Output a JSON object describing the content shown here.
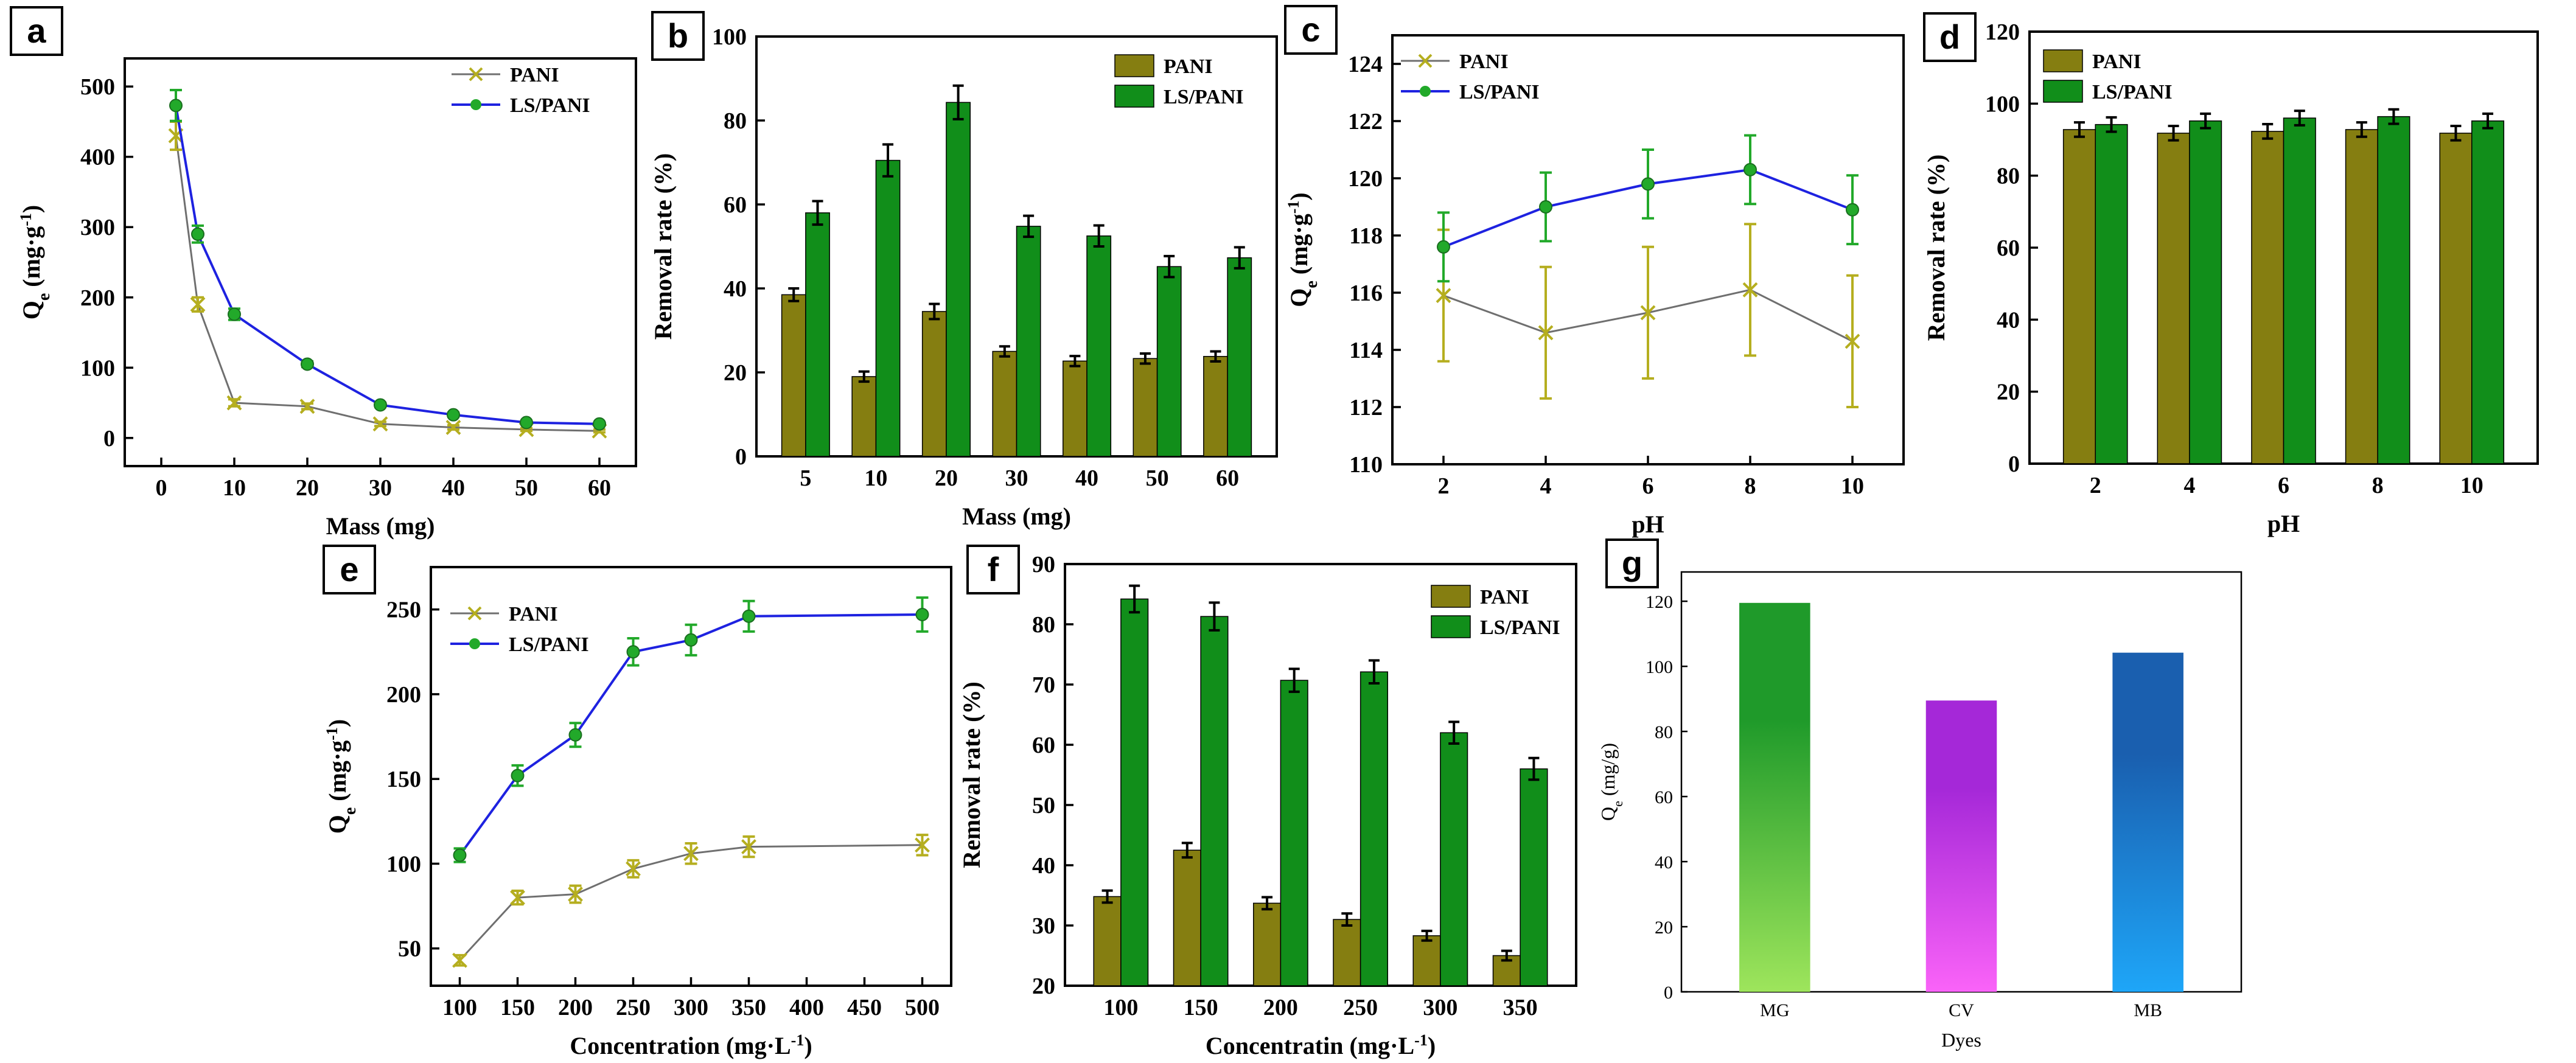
{
  "figure": {
    "panel_labels": [
      "a",
      "b",
      "c",
      "d",
      "e",
      "f",
      "g"
    ],
    "colors": {
      "pani_bar": "#857E11",
      "lspani_bar": "#118E1A",
      "pani_line": "#6f6f6f",
      "pani_marker": "#B5AE1F",
      "lspani_line": "#1E22E0",
      "lspani_marker": "#22A92A",
      "mg_top": "#1F9A2A",
      "mg_bottom": "#9EE55C",
      "cv_top": "#A528D8",
      "cv_bottom": "#FA63F8",
      "mb_top": "#1A5FAF",
      "mb_bottom": "#1EA6F8"
    }
  },
  "chart_data": [
    {
      "panel": "a",
      "type": "line",
      "xlabel": "Mass (mg)",
      "ylabel": "Qe (mg·g⁻¹)",
      "ylabel_main": "Q",
      "ylabel_sub": "e",
      "ylabel_unit": " (mg·g",
      "ylabel_sup": "-1",
      "ylabel_close": ")",
      "xlim": [
        -5,
        65
      ],
      "ylim": [
        -40,
        540
      ],
      "xticks": [
        0,
        10,
        20,
        30,
        40,
        50,
        60
      ],
      "yticks": [
        0,
        100,
        200,
        300,
        400,
        500
      ],
      "legend": "top-right",
      "series": [
        {
          "name": "PANI",
          "x": [
            2,
            5,
            10,
            20,
            30,
            40,
            50,
            60
          ],
          "y": [
            430,
            190,
            50,
            45,
            20,
            15,
            12,
            10
          ],
          "err": [
            20,
            10,
            5,
            4,
            3,
            3,
            2,
            2
          ]
        },
        {
          "name": "LS/PANI",
          "x": [
            2,
            5,
            10,
            20,
            30,
            40,
            50,
            60
          ],
          "y": [
            473,
            290,
            176,
            105,
            47,
            33,
            22,
            20
          ],
          "err": [
            22,
            12,
            8,
            4,
            3,
            3,
            2,
            2
          ]
        }
      ]
    },
    {
      "panel": "b",
      "type": "bar",
      "xlabel": "Mass (mg)",
      "ylabel": "Removal rate (%)",
      "categories": [
        "5",
        "10",
        "20",
        "30",
        "40",
        "50",
        "60"
      ],
      "ylim": [
        0,
        100
      ],
      "yticks": [
        0,
        20,
        40,
        60,
        80,
        100
      ],
      "legend": "top-right",
      "series": [
        {
          "name": "PANI",
          "values": [
            38.5,
            19,
            34.5,
            25,
            22.7,
            23.3,
            23.8
          ],
          "err": [
            1.5,
            1.2,
            1.8,
            1.2,
            1.2,
            1.2,
            1.2
          ]
        },
        {
          "name": "LS/PANI",
          "values": [
            58,
            70.5,
            84.3,
            54.8,
            52.5,
            45.2,
            47.3
          ],
          "err": [
            2.8,
            3.8,
            4,
            2.5,
            2.5,
            2.5,
            2.5
          ]
        }
      ]
    },
    {
      "panel": "c",
      "type": "line",
      "xlabel": "pH",
      "ylabel": "Qe (mg·g⁻¹)",
      "ylabel_main": "Q",
      "ylabel_sub": "e",
      "ylabel_unit": " (mg·g",
      "ylabel_sup": "-1",
      "ylabel_close": ")",
      "xlim": [
        1,
        11
      ],
      "ylim": [
        110,
        125
      ],
      "xticks": [
        2,
        4,
        6,
        8,
        10
      ],
      "yticks": [
        110,
        112,
        114,
        116,
        118,
        120,
        122,
        124
      ],
      "legend": "top-left",
      "series": [
        {
          "name": "PANI",
          "x": [
            2,
            4,
            6,
            8,
            10
          ],
          "y": [
            115.9,
            114.6,
            115.3,
            116.1,
            114.3
          ],
          "err": [
            2.3,
            2.3,
            2.3,
            2.3,
            2.3
          ]
        },
        {
          "name": "LS/PANI",
          "x": [
            2,
            4,
            6,
            8,
            10
          ],
          "y": [
            117.6,
            119,
            119.8,
            120.3,
            118.9
          ],
          "err": [
            1.2,
            1.2,
            1.2,
            1.2,
            1.2
          ]
        }
      ]
    },
    {
      "panel": "d",
      "type": "bar",
      "xlabel": "pH",
      "ylabel": "Removal rate (%)",
      "categories": [
        "2",
        "4",
        "6",
        "8",
        "10"
      ],
      "ylim": [
        0,
        120
      ],
      "yticks": [
        0,
        20,
        40,
        60,
        80,
        100,
        120
      ],
      "legend": "top-left",
      "series": [
        {
          "name": "PANI",
          "values": [
            92.8,
            91.8,
            92.3,
            92.8,
            91.8
          ],
          "err": [
            2,
            2,
            2,
            2,
            2
          ]
        },
        {
          "name": "LS/PANI",
          "values": [
            94.2,
            95.2,
            96,
            96.4,
            95.2
          ],
          "err": [
            2,
            2,
            2,
            2,
            2
          ]
        }
      ]
    },
    {
      "panel": "e",
      "type": "line",
      "xlabel": "Concentration (mg·L⁻¹)",
      "xlabel_main": "Concentration (mg·L",
      "xlabel_sup": "-1",
      "xlabel_close": ")",
      "ylabel": "Qe (mg·g⁻¹)",
      "ylabel_main": "Q",
      "ylabel_sub": "e",
      "ylabel_unit": " (mg·g",
      "ylabel_sup": "-1",
      "ylabel_close": ")",
      "xlim": [
        75,
        525
      ],
      "ylim": [
        28,
        275
      ],
      "xticks": [
        100,
        150,
        200,
        250,
        300,
        350,
        400,
        450,
        500
      ],
      "yticks": [
        50,
        100,
        150,
        200,
        250
      ],
      "legend": "top-left",
      "series": [
        {
          "name": "PANI",
          "x": [
            100,
            150,
            200,
            250,
            300,
            350,
            500
          ],
          "y": [
            43,
            80,
            82,
            97,
            106,
            110,
            111
          ],
          "err": [
            3,
            4,
            5,
            5,
            6,
            6,
            6
          ]
        },
        {
          "name": "LS/PANI",
          "x": [
            100,
            150,
            200,
            250,
            300,
            350,
            500
          ],
          "y": [
            105,
            152,
            176,
            225,
            232,
            246,
            247
          ],
          "err": [
            4,
            6,
            7,
            8,
            9,
            9,
            10
          ]
        }
      ]
    },
    {
      "panel": "f",
      "type": "bar",
      "xlabel": "Concentratin (mg·L⁻¹)",
      "xlabel_main": "Concentratin (mg·L",
      "xlabel_sup": "-1",
      "xlabel_close": ")",
      "ylabel": "Removal rate (%)",
      "categories": [
        "100",
        "150",
        "200",
        "250",
        "300",
        "350"
      ],
      "ylim": [
        20,
        90
      ],
      "yticks": [
        20,
        30,
        40,
        50,
        60,
        70,
        80,
        90
      ],
      "legend": "top-right",
      "series": [
        {
          "name": "PANI",
          "values": [
            34.8,
            42.5,
            33.7,
            31,
            28.3,
            25
          ],
          "err": [
            1,
            1.2,
            1,
            1,
            0.8,
            0.8
          ]
        },
        {
          "name": "LS/PANI",
          "values": [
            84.2,
            81.3,
            70.7,
            72.1,
            62,
            56
          ],
          "err": [
            2.2,
            2.3,
            1.9,
            1.9,
            1.8,
            1.8
          ]
        }
      ]
    },
    {
      "panel": "g",
      "type": "bar",
      "xlabel": "Dyes",
      "ylabel": "Qe (mg/g)",
      "ylabel_main": "Q",
      "ylabel_sub": "e",
      "ylabel_unit": " (mg/g)",
      "categories": [
        "MG",
        "CV",
        "MB"
      ],
      "values": [
        119.5,
        89.5,
        104.2
      ],
      "ylim": [
        0,
        129
      ],
      "yticks": [
        0,
        20,
        40,
        60,
        80,
        100,
        120
      ],
      "gradient_colors": [
        [
          "#1F9A2A",
          "#9EE55C"
        ],
        [
          "#A528D8",
          "#FA63F8"
        ],
        [
          "#1A5FAF",
          "#1EA6F8"
        ]
      ]
    }
  ]
}
